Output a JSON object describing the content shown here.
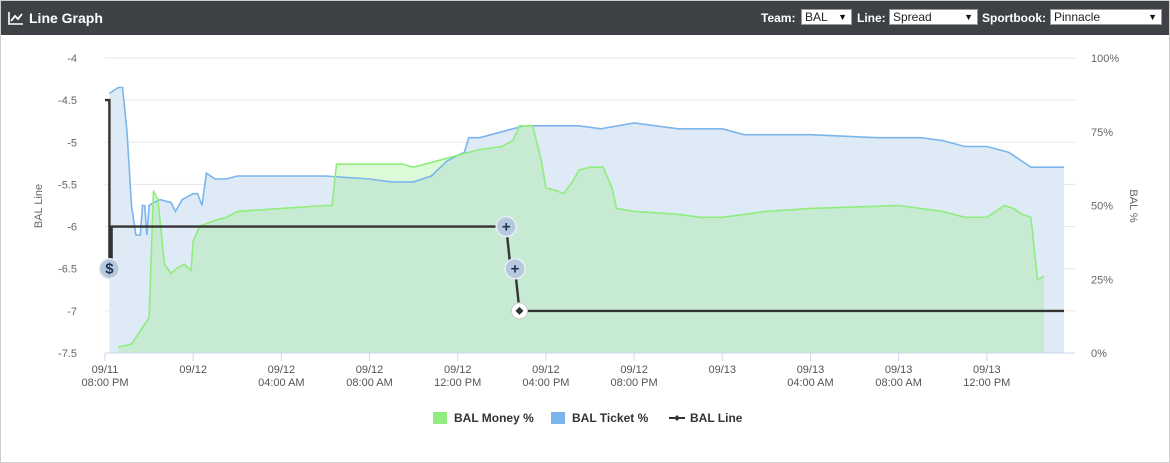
{
  "header": {
    "title": "Line Graph",
    "icon": "line-chart-icon",
    "team_label": "Team:",
    "team_value": "BAL",
    "line_label": "Line:",
    "line_value": "Spread",
    "sportbook_label": "Sportbook:",
    "sportbook_value": "Pinnacle"
  },
  "colors": {
    "money": "#90ed7d",
    "money_fill": "#cde9d8",
    "ticket": "#7cb5ec",
    "ticket_fill": "#dde9f7",
    "line": "#333333",
    "header_bg": "#3e4246"
  },
  "chart_data": {
    "type": "line",
    "ylabel_left": "BAL Line",
    "ylabel_right": "BAL %",
    "y_left_ticks": [
      "-4",
      "-4.5",
      "-5",
      "-5.5",
      "-6",
      "-6.5",
      "-7",
      "-7.5"
    ],
    "y_left_range": [
      -7.5,
      -4
    ],
    "y_right_ticks": [
      "100%",
      "75%",
      "50%",
      "25%",
      "0%"
    ],
    "y_right_range": [
      0,
      100
    ],
    "x_range_hours": [
      0,
      44
    ],
    "x_ticks": [
      {
        "h": 0,
        "top": "09/11",
        "bottom": "08:00 PM"
      },
      {
        "h": 4,
        "top": "09/12",
        "bottom": ""
      },
      {
        "h": 8,
        "top": "09/12",
        "bottom": "04:00 AM"
      },
      {
        "h": 12,
        "top": "09/12",
        "bottom": "08:00 AM"
      },
      {
        "h": 16,
        "top": "09/12",
        "bottom": "12:00 PM"
      },
      {
        "h": 20,
        "top": "09/12",
        "bottom": "04:00 PM"
      },
      {
        "h": 24,
        "top": "09/12",
        "bottom": "08:00 PM"
      },
      {
        "h": 28,
        "top": "09/13",
        "bottom": ""
      },
      {
        "h": 32,
        "top": "09/13",
        "bottom": "04:00 AM"
      },
      {
        "h": 36,
        "top": "09/13",
        "bottom": "08:00 AM"
      },
      {
        "h": 40,
        "top": "09/13",
        "bottom": "12:00 PM"
      }
    ],
    "series": [
      {
        "name": "BAL Money %",
        "points": [
          [
            0.6,
            2
          ],
          [
            1.2,
            3
          ],
          [
            2.0,
            12
          ],
          [
            2.2,
            55
          ],
          [
            2.4,
            52
          ],
          [
            2.7,
            30
          ],
          [
            3.0,
            27
          ],
          [
            3.3,
            29
          ],
          [
            3.6,
            30
          ],
          [
            3.9,
            28
          ],
          [
            4.0,
            38
          ],
          [
            4.3,
            43
          ],
          [
            5.0,
            45
          ],
          [
            5.5,
            46
          ],
          [
            6.0,
            48
          ],
          [
            8.0,
            49
          ],
          [
            10.0,
            50
          ],
          [
            10.3,
            50
          ],
          [
            10.5,
            64
          ],
          [
            12.0,
            64
          ],
          [
            13.5,
            64
          ],
          [
            14.0,
            63
          ],
          [
            15.0,
            65
          ],
          [
            16.0,
            67
          ],
          [
            17.0,
            69
          ],
          [
            18.0,
            70
          ],
          [
            18.5,
            72
          ],
          [
            18.8,
            77
          ],
          [
            19.4,
            77
          ],
          [
            19.8,
            65
          ],
          [
            20.0,
            56
          ],
          [
            20.5,
            55
          ],
          [
            20.8,
            54
          ],
          [
            21.2,
            58
          ],
          [
            21.5,
            62
          ],
          [
            22.0,
            63
          ],
          [
            22.6,
            63
          ],
          [
            23.0,
            56
          ],
          [
            23.2,
            49
          ],
          [
            24.0,
            48
          ],
          [
            26.0,
            47
          ],
          [
            27.0,
            46
          ],
          [
            28.0,
            46
          ],
          [
            30.0,
            48
          ],
          [
            32.0,
            49
          ],
          [
            36.0,
            50
          ],
          [
            38.0,
            48
          ],
          [
            39.0,
            46
          ],
          [
            40.0,
            46
          ],
          [
            40.8,
            50
          ],
          [
            41.2,
            49
          ],
          [
            41.6,
            47
          ],
          [
            42.0,
            46
          ],
          [
            42.3,
            25
          ],
          [
            42.6,
            26
          ]
        ]
      },
      {
        "name": "BAL Ticket %",
        "points": [
          [
            0.2,
            88
          ],
          [
            0.6,
            90
          ],
          [
            0.8,
            90
          ],
          [
            1.0,
            75
          ],
          [
            1.2,
            50
          ],
          [
            1.4,
            40
          ],
          [
            1.6,
            40
          ],
          [
            1.7,
            50
          ],
          [
            1.8,
            50
          ],
          [
            1.9,
            40
          ],
          [
            2.0,
            50
          ],
          [
            2.2,
            51
          ],
          [
            2.5,
            52
          ],
          [
            3.0,
            51
          ],
          [
            3.2,
            48
          ],
          [
            3.5,
            52
          ],
          [
            4.0,
            54
          ],
          [
            4.2,
            54
          ],
          [
            4.4,
            50
          ],
          [
            4.6,
            61
          ],
          [
            5.0,
            59
          ],
          [
            5.5,
            59
          ],
          [
            6.0,
            60
          ],
          [
            6.5,
            60
          ],
          [
            8.0,
            60
          ],
          [
            10.0,
            60
          ],
          [
            12.0,
            59
          ],
          [
            13.0,
            58
          ],
          [
            14.0,
            58
          ],
          [
            14.8,
            60
          ],
          [
            15.5,
            65
          ],
          [
            16.0,
            67
          ],
          [
            16.3,
            68
          ],
          [
            16.5,
            73
          ],
          [
            17.0,
            73
          ],
          [
            17.5,
            74
          ],
          [
            18.0,
            75
          ],
          [
            18.5,
            76
          ],
          [
            19.0,
            77
          ],
          [
            20.0,
            77
          ],
          [
            21.5,
            77
          ],
          [
            22.5,
            76
          ],
          [
            24.0,
            78
          ],
          [
            26.0,
            76
          ],
          [
            28.0,
            76
          ],
          [
            29.0,
            74
          ],
          [
            30.0,
            74
          ],
          [
            32.0,
            74
          ],
          [
            35.0,
            73
          ],
          [
            37.0,
            73
          ],
          [
            38.0,
            72
          ],
          [
            39.0,
            70
          ],
          [
            40.0,
            70
          ],
          [
            41.0,
            68
          ],
          [
            42.0,
            63
          ],
          [
            43.5,
            63
          ]
        ]
      },
      {
        "name": "BAL Line",
        "points": [
          [
            0,
            -4.5
          ],
          [
            0.2,
            -4.5
          ],
          [
            0.2,
            -6.5
          ],
          [
            0.3,
            -6.5
          ],
          [
            0.3,
            -6
          ],
          [
            18.2,
            -6
          ],
          [
            18.4,
            -6.5
          ],
          [
            18.6,
            -6.5
          ],
          [
            18.8,
            -7
          ],
          [
            43.5,
            -7
          ]
        ],
        "markers": [
          {
            "h": 0.2,
            "y": -6.5,
            "symbol": "$"
          },
          {
            "h": 18.2,
            "y": -6,
            "symbol": "+"
          },
          {
            "h": 18.6,
            "y": -6.5,
            "symbol": "+"
          },
          {
            "h": 18.8,
            "y": -7,
            "symbol": "diamond"
          }
        ]
      }
    ],
    "legend_position": "bottom-center",
    "legend": [
      "BAL Money %",
      "BAL Ticket %",
      "BAL Line"
    ],
    "grid": true
  }
}
